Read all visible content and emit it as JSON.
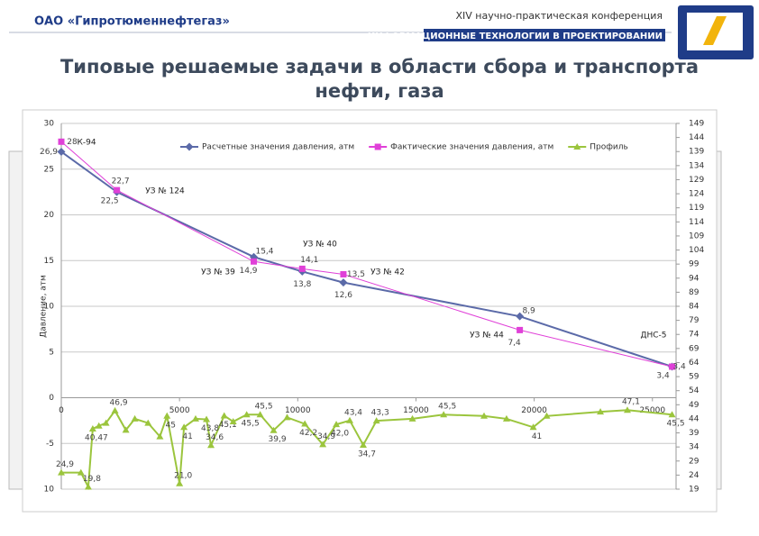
{
  "header": {
    "company": "ОАО «Гипротюменнефтегаз»",
    "conference": "XIV научно-практическая конференция",
    "topic": "ИНФОРМАЦИОННЫЕ ТЕХНОЛОГИИ В ПРОЕКТИРОВАНИИ"
  },
  "slide_title": [
    "Типовые решаемые задачи в области сбора и транспорта",
    "нефти, газа"
  ],
  "chart_data": {
    "type": "line",
    "ylabel": "Давление, атм",
    "xlim": [
      0,
      26000
    ],
    "xticks": [
      0,
      5000,
      10000,
      15000,
      20000,
      25000
    ],
    "ylim": [
      -10,
      30
    ],
    "yticks": [
      30,
      25,
      20,
      15,
      10,
      5,
      0,
      -5,
      {
        "value": -10,
        "label": "10"
      }
    ],
    "y2lim": [
      19,
      149
    ],
    "y2ticks": [
      149,
      144,
      139,
      134,
      129,
      124,
      119,
      114,
      109,
      104,
      99,
      94,
      89,
      84,
      79,
      74,
      69,
      64,
      59,
      54,
      49,
      44,
      39,
      34,
      29,
      24,
      19
    ],
    "grid": true,
    "series": [
      {
        "name": "Расчетные значения давления, атм",
        "color": "#5b6aa8",
        "marker": "diamond",
        "x": [
          0,
          2350,
          8140,
          10190,
          11930,
          19390,
          25830
        ],
        "values": [
          26.9,
          22.5,
          15.4,
          13.8,
          12.6,
          8.9,
          3.4
        ],
        "value_labels": [
          "26,9",
          "22,5",
          "15,4",
          "13,8",
          "12,6",
          "8,9",
          "3,4"
        ]
      },
      {
        "name": "Фактические значения давления, атм",
        "color": "#e040d8",
        "marker": "square",
        "x": [
          0,
          2350,
          8140,
          10190,
          11930,
          19390,
          25830
        ],
        "values": [
          28,
          22.7,
          14.9,
          14.1,
          13.5,
          7.4,
          3.4
        ],
        "value_labels": [
          "28",
          "22,7",
          "14,9",
          "14,1",
          "13,5",
          "7,4",
          "3,4"
        ]
      },
      {
        "name": "Профиль",
        "color": "#9bc53d",
        "marker": "triangle",
        "axis": "y2",
        "x": [
          0,
          830,
          1140,
          1330,
          1590,
          1890,
          2270,
          2730,
          3110,
          3670,
          4170,
          4470,
          5000,
          5190,
          5680,
          6140,
          6330,
          6890,
          7270,
          7840,
          8410,
          8980,
          9550,
          10300,
          11060,
          11630,
          12200,
          12770,
          13330,
          14850,
          16170,
          17880,
          18830,
          19960,
          20530,
          22800,
          23940,
          25830
        ],
        "values": [
          24.9,
          24.9,
          19.8,
          40.47,
          41.5,
          42.5,
          46.9,
          40,
          44,
          42.5,
          37.7,
          45,
          21.0,
          41,
          44,
          43.8,
          34.6,
          45.1,
          43,
          45.5,
          45.5,
          39.9,
          44.5,
          42.2,
          34.9,
          42.0,
          43.4,
          34.7,
          43.3,
          44,
          45.5,
          45,
          44,
          41,
          45,
          46.5,
          47.1,
          45.5
        ],
        "value_labels": [
          "24,9",
          null,
          "19,8",
          "40,47",
          null,
          null,
          "46,9",
          null,
          null,
          null,
          null,
          "45",
          "21,0",
          "41",
          null,
          "43,8",
          "34,6",
          "45,1",
          null,
          "45,5",
          "45,5",
          "39,9",
          null,
          "42,2",
          "34,9",
          "42,0",
          "43,4",
          "34,7",
          "43,3",
          null,
          "45,5",
          null,
          null,
          "41",
          null,
          null,
          "47,1",
          "45,5"
        ]
      }
    ],
    "annotations": [
      "К-94",
      "УЗ № 124",
      "УЗ № 39",
      "УЗ № 40",
      "УЗ № 42",
      "УЗ № 44",
      "ДНС-5"
    ]
  }
}
